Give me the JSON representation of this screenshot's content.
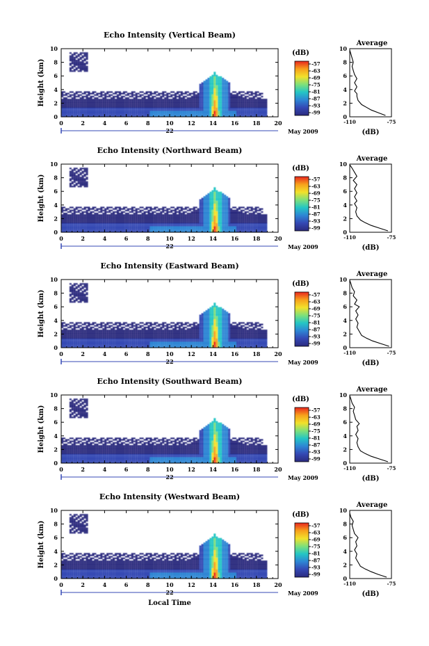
{
  "chart_data": [
    {
      "type": "heatmap",
      "title": "Echo Intensity (Vertical Beam)",
      "xlabel": "",
      "ylabel": "Height (km)",
      "xlim": [
        0,
        20
      ],
      "ylim": [
        0,
        10
      ],
      "x_ticks": [
        "0",
        "2",
        "4",
        "6",
        "8",
        "10",
        "12",
        "14",
        "16",
        "18",
        "20"
      ],
      "y_ticks": [
        "0",
        "2",
        "4",
        "6",
        "8",
        "10"
      ],
      "date_day": "22",
      "date_month": "May 2009",
      "colorbar": {
        "unit": "(dB)",
        "ticks": [
          "-57",
          "-63",
          "-69",
          "-75",
          "-81",
          "-87",
          "-93",
          "-99"
        ]
      },
      "profile": {
        "title": "Average",
        "xlabel": "(dB)",
        "xlim": [
          -110,
          -75
        ],
        "x_ticks": [
          "-110",
          "-75"
        ],
        "ylim": [
          0,
          10
        ],
        "y_ticks": [
          "0",
          "2",
          "4",
          "6",
          "8",
          "10"
        ],
        "points": [
          [
            -80,
            0.2
          ],
          [
            -86,
            0.6
          ],
          [
            -92,
            1.0
          ],
          [
            -96,
            1.4
          ],
          [
            -100,
            1.8
          ],
          [
            -103,
            2.4
          ],
          [
            -104,
            3.0
          ],
          [
            -104,
            3.4
          ],
          [
            -106,
            3.8
          ],
          [
            -104,
            4.4
          ],
          [
            -106,
            5.0
          ],
          [
            -104,
            5.6
          ],
          [
            -106,
            6.2
          ],
          [
            -107,
            6.8
          ],
          [
            -108,
            7.4
          ],
          [
            -107,
            8.0
          ],
          [
            -108,
            8.6
          ],
          [
            -109,
            9.2
          ],
          [
            -110,
            9.8
          ]
        ]
      }
    },
    {
      "type": "heatmap",
      "title": "Echo Intensity (Northward Beam)",
      "xlabel": "",
      "ylabel": "Height (km)",
      "xlim": [
        0,
        20
      ],
      "ylim": [
        0,
        10
      ],
      "x_ticks": [
        "0",
        "2",
        "4",
        "6",
        "8",
        "10",
        "12",
        "14",
        "16",
        "18",
        "20"
      ],
      "y_ticks": [
        "0",
        "2",
        "4",
        "6",
        "8",
        "10"
      ],
      "date_day": "22",
      "date_month": "May 2009",
      "colorbar": {
        "unit": "(dB)",
        "ticks": [
          "-57",
          "-63",
          "-69",
          "-75",
          "-81",
          "-87",
          "-93",
          "-99"
        ]
      },
      "profile": {
        "title": "Average",
        "xlabel": "(dB)",
        "xlim": [
          -110,
          -75
        ],
        "x_ticks": [
          "-110",
          "-75"
        ],
        "ylim": [
          0,
          10
        ],
        "y_ticks": [
          "0",
          "2",
          "4",
          "6",
          "8",
          "10"
        ],
        "points": [
          [
            -78,
            0.2
          ],
          [
            -85,
            0.6
          ],
          [
            -92,
            1.0
          ],
          [
            -97,
            1.4
          ],
          [
            -101,
            1.8
          ],
          [
            -104,
            2.4
          ],
          [
            -105,
            3.0
          ],
          [
            -104,
            3.6
          ],
          [
            -106,
            4.2
          ],
          [
            -104,
            4.6
          ],
          [
            -106,
            5.2
          ],
          [
            -104,
            5.8
          ],
          [
            -106,
            6.4
          ],
          [
            -104,
            7.0
          ],
          [
            -107,
            7.6
          ],
          [
            -104,
            8.2
          ],
          [
            -106,
            8.8
          ],
          [
            -108,
            9.4
          ],
          [
            -110,
            9.9
          ]
        ]
      }
    },
    {
      "type": "heatmap",
      "title": "Echo Intensity (Eastward Beam)",
      "xlabel": "",
      "ylabel": "Height (km)",
      "xlim": [
        0,
        20
      ],
      "ylim": [
        0,
        10
      ],
      "x_ticks": [
        "0",
        "2",
        "4",
        "6",
        "8",
        "10",
        "12",
        "14",
        "16",
        "18",
        "20"
      ],
      "y_ticks": [
        "0",
        "2",
        "4",
        "6",
        "8",
        "10"
      ],
      "date_day": "22",
      "date_month": "May 2009",
      "colorbar": {
        "unit": "(dB)",
        "ticks": [
          "-57",
          "-63",
          "-69",
          "-75",
          "-81",
          "-87",
          "-93",
          "-99"
        ]
      },
      "profile": {
        "title": "Average",
        "xlabel": "(dB)",
        "xlim": [
          -110,
          -75
        ],
        "x_ticks": [
          "-110",
          "-75"
        ],
        "ylim": [
          0,
          10
        ],
        "y_ticks": [
          "0",
          "2",
          "4",
          "6",
          "8",
          "10"
        ],
        "points": [
          [
            -77,
            0.2
          ],
          [
            -84,
            0.6
          ],
          [
            -91,
            1.0
          ],
          [
            -96,
            1.4
          ],
          [
            -100,
            1.8
          ],
          [
            -102,
            2.4
          ],
          [
            -104,
            3.0
          ],
          [
            -103,
            3.6
          ],
          [
            -105,
            4.2
          ],
          [
            -103,
            4.8
          ],
          [
            -105,
            5.4
          ],
          [
            -102,
            6.0
          ],
          [
            -106,
            6.4
          ],
          [
            -104,
            7.0
          ],
          [
            -107,
            7.6
          ],
          [
            -106,
            8.2
          ],
          [
            -108,
            8.8
          ],
          [
            -109,
            9.4
          ],
          [
            -110,
            9.9
          ]
        ]
      }
    },
    {
      "type": "heatmap",
      "title": "Echo Intensity (Southward Beam)",
      "xlabel": "",
      "ylabel": "Height (km)",
      "xlim": [
        0,
        20
      ],
      "ylim": [
        0,
        10
      ],
      "x_ticks": [
        "0",
        "2",
        "4",
        "6",
        "8",
        "10",
        "12",
        "14",
        "16",
        "18",
        "20"
      ],
      "y_ticks": [
        "0",
        "2",
        "4",
        "6",
        "8",
        "10"
      ],
      "date_day": "22",
      "date_month": "May 2009",
      "colorbar": {
        "unit": "(dB)",
        "ticks": [
          "-57",
          "-63",
          "-69",
          "-75",
          "-81",
          "-87",
          "-93",
          "-99"
        ]
      },
      "profile": {
        "title": "Average",
        "xlabel": "(dB)",
        "xlim": [
          -110,
          -75
        ],
        "x_ticks": [
          "-110",
          "-75"
        ],
        "ylim": [
          0,
          10
        ],
        "y_ticks": [
          "0",
          "2",
          "4",
          "6",
          "8",
          "10"
        ],
        "points": [
          [
            -78,
            0.2
          ],
          [
            -85,
            0.6
          ],
          [
            -92,
            1.0
          ],
          [
            -97,
            1.4
          ],
          [
            -101,
            1.8
          ],
          [
            -103,
            2.4
          ],
          [
            -104,
            3.0
          ],
          [
            -103,
            3.6
          ],
          [
            -105,
            4.2
          ],
          [
            -103,
            4.8
          ],
          [
            -104,
            5.4
          ],
          [
            -102,
            5.8
          ],
          [
            -105,
            6.4
          ],
          [
            -106,
            7.0
          ],
          [
            -107,
            7.6
          ],
          [
            -106,
            8.2
          ],
          [
            -108,
            8.8
          ],
          [
            -109,
            9.4
          ],
          [
            -110,
            9.9
          ]
        ]
      }
    },
    {
      "type": "heatmap",
      "title": "Echo Intensity (Westward Beam)",
      "xlabel": "Local Time",
      "ylabel": "Height (km)",
      "xlim": [
        0,
        20
      ],
      "ylim": [
        0,
        10
      ],
      "x_ticks": [
        "0",
        "2",
        "4",
        "6",
        "8",
        "10",
        "12",
        "14",
        "16",
        "18",
        "20"
      ],
      "y_ticks": [
        "0",
        "2",
        "4",
        "6",
        "8",
        "10"
      ],
      "date_day": "22",
      "date_month": "May 2009",
      "colorbar": {
        "unit": "(dB)",
        "ticks": [
          "-57",
          "-63",
          "-69",
          "-75",
          "-81",
          "-87",
          "-93",
          "-99"
        ]
      },
      "profile": {
        "title": "Average",
        "xlabel": "(dB)",
        "xlim": [
          -110,
          -75
        ],
        "x_ticks": [
          "-110",
          "-75"
        ],
        "ylim": [
          0,
          10
        ],
        "y_ticks": [
          "0",
          "2",
          "4",
          "6",
          "8",
          "10"
        ],
        "points": [
          [
            -79,
            0.2
          ],
          [
            -86,
            0.6
          ],
          [
            -92,
            1.0
          ],
          [
            -97,
            1.4
          ],
          [
            -101,
            1.8
          ],
          [
            -103,
            2.4
          ],
          [
            -105,
            3.0
          ],
          [
            -104,
            3.6
          ],
          [
            -106,
            4.2
          ],
          [
            -104,
            4.8
          ],
          [
            -105,
            5.4
          ],
          [
            -103,
            6.0
          ],
          [
            -106,
            6.6
          ],
          [
            -107,
            7.2
          ],
          [
            -108,
            7.8
          ],
          [
            -107,
            8.4
          ],
          [
            -109,
            9.0
          ],
          [
            -110,
            9.6
          ],
          [
            -110,
            9.9
          ]
        ]
      }
    }
  ],
  "colors": {
    "colormap": [
      "#2b2a7e",
      "#3448b4",
      "#2d86d4",
      "#24c6c4",
      "#7fe07a",
      "#f2e12b",
      "#f7a11c",
      "#e8271e"
    ],
    "axis": "#000000",
    "blank": "#ffffff"
  }
}
